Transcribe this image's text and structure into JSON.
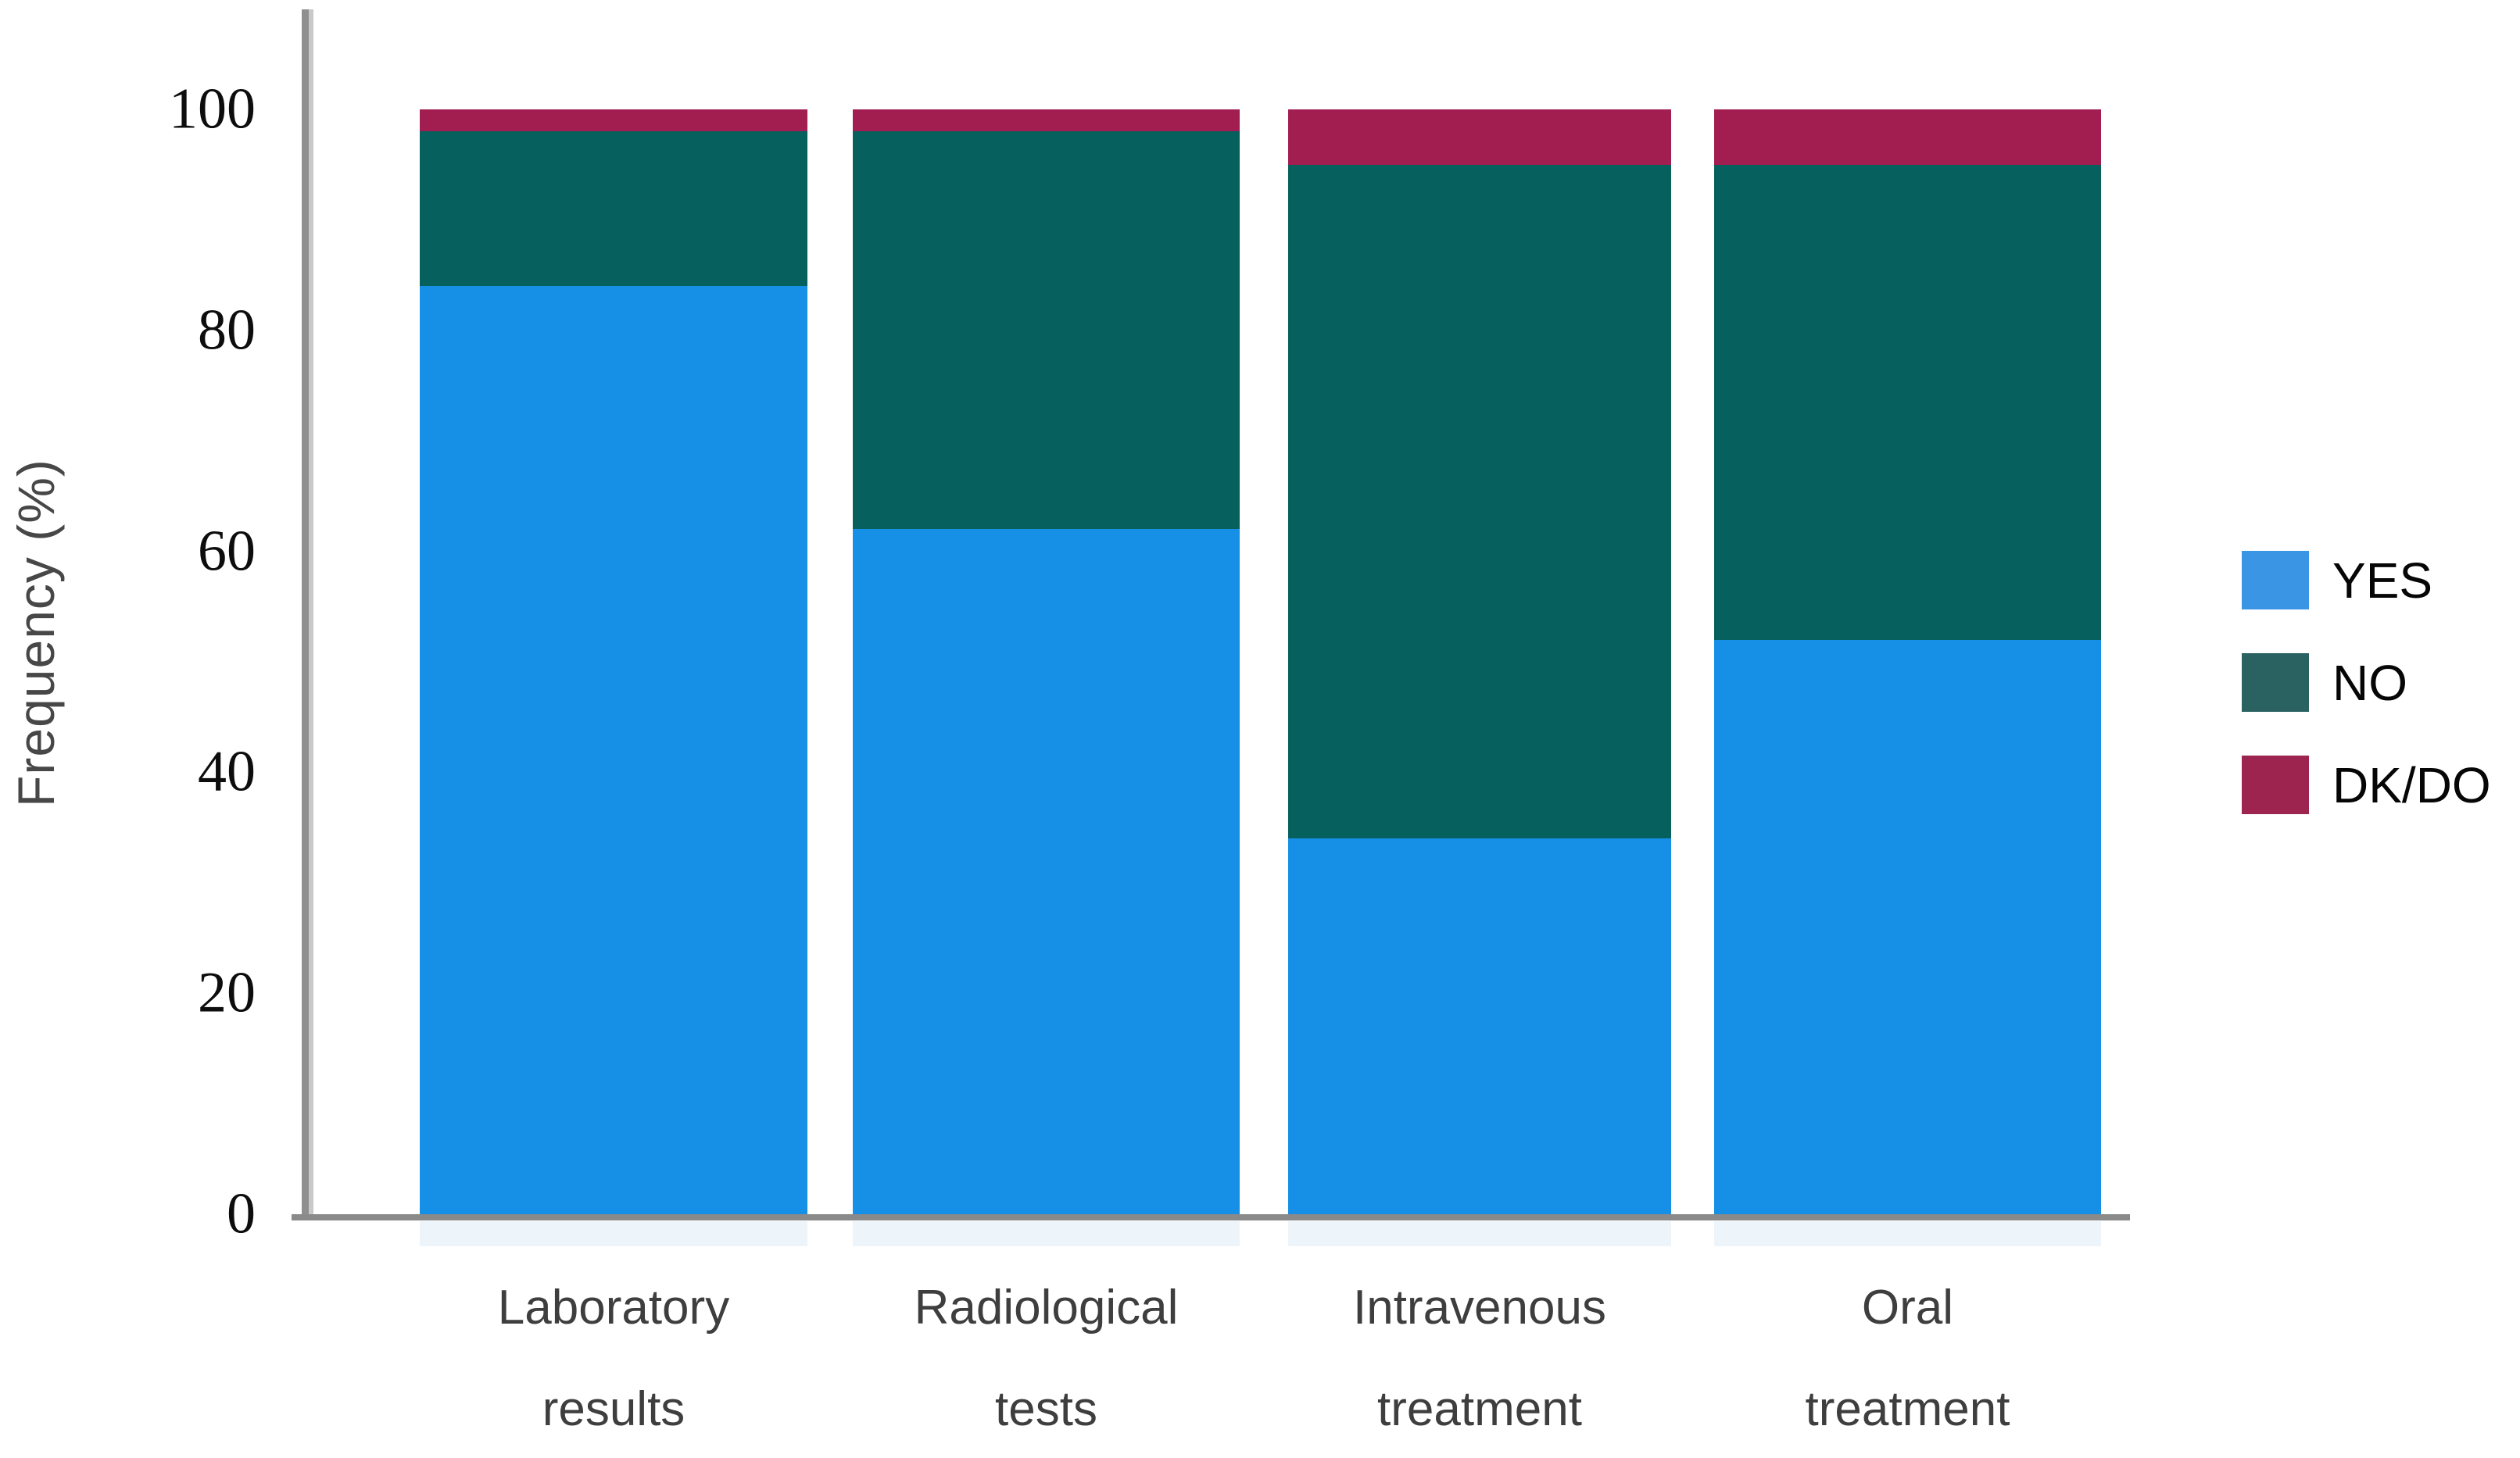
{
  "chart_data": {
    "type": "bar",
    "stacked": true,
    "title": "",
    "xlabel": "",
    "ylabel": "Frequency (%)",
    "ylim": [
      0,
      100
    ],
    "y_ticks": [
      0,
      20,
      40,
      60,
      80,
      100
    ],
    "grid": false,
    "legend_position": "right",
    "categories": [
      "Laboratory results",
      "Radiological tests",
      "Intravenous treatment",
      "Oral treatment"
    ],
    "category_lines": [
      [
        "Laboratory",
        "results"
      ],
      [
        "Radiological",
        "tests"
      ],
      [
        "Intravenous",
        "treatment"
      ],
      [
        "Oral",
        "treatment"
      ]
    ],
    "series": [
      {
        "name": "YES",
        "color": "#1590e6",
        "legend_color": "#3b95e5",
        "values": [
          84,
          62,
          34,
          52
        ]
      },
      {
        "name": "NO",
        "color": "#05605e",
        "legend_color": "#2a6161",
        "values": [
          14,
          36,
          61,
          43
        ]
      },
      {
        "name": "DK/DO",
        "color": "#a21e50",
        "legend_color": "#9e2450",
        "values": [
          2,
          2,
          5,
          5
        ]
      }
    ]
  },
  "colors": {
    "axis_line": "#8a8a8a",
    "tick_text": "#0d0d0d",
    "category_text": "#3e3e3e",
    "axis_title_text": "#474747",
    "background": "#ffffff"
  }
}
